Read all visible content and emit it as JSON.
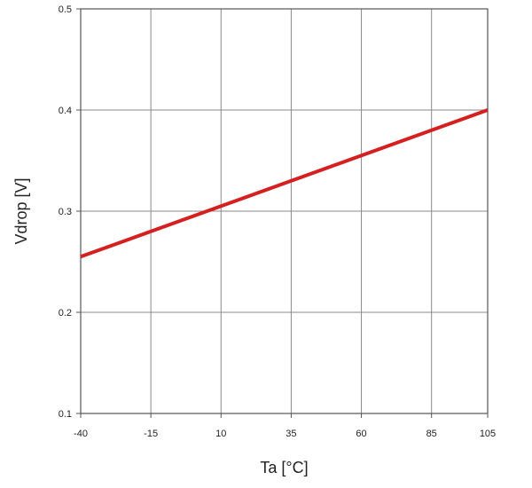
{
  "chart_data": {
    "type": "line",
    "title": "",
    "xlabel": "Ta [°C]",
    "ylabel": "Vdrop  [V]",
    "xlim": [
      -40,
      105
    ],
    "ylim": [
      0.1,
      0.5
    ],
    "x_ticks": [
      -40,
      -15,
      10,
      35,
      60,
      85,
      105
    ],
    "x_tick_labels": [
      "-40",
      "-15",
      "10",
      "35",
      "60",
      "85",
      "105"
    ],
    "y_ticks": [
      0.1,
      0.2,
      0.3,
      0.4,
      0.5
    ],
    "y_tick_labels": [
      "0.1",
      "0.2",
      "0.3",
      "0.4",
      "0.5"
    ],
    "grid": true,
    "series": [
      {
        "color": "#d42020",
        "x": [
          -40,
          105
        ],
        "y": [
          0.255,
          0.4
        ]
      }
    ]
  }
}
